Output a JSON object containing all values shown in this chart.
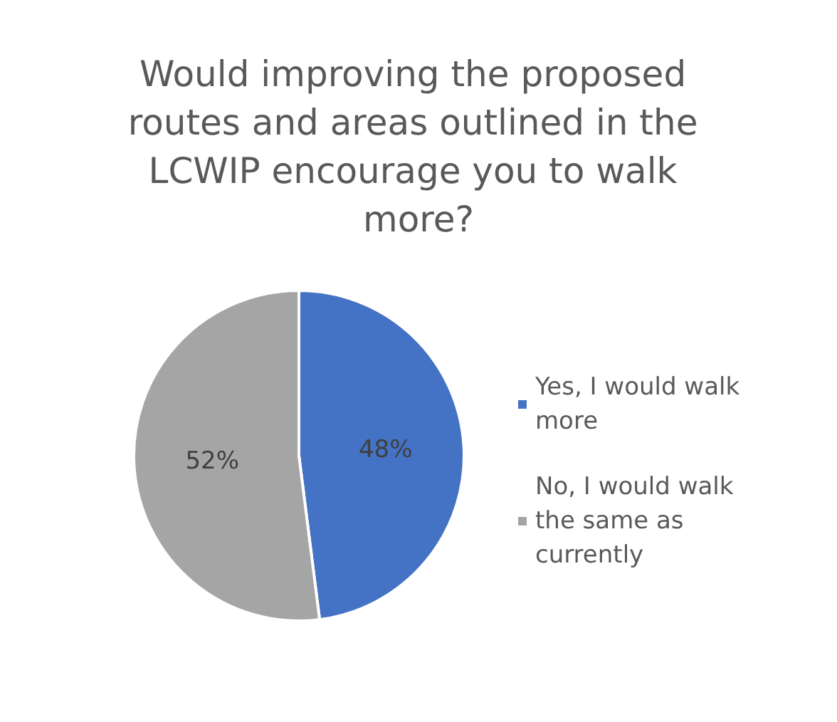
{
  "chart_data": {
    "type": "pie",
    "title": "Would improving the proposed routes and areas outlined in the LCWIP encourage you to walk more?",
    "categories": [
      "Yes, I would walk more",
      "No, I would walk the same as currently"
    ],
    "values": [
      48,
      52
    ],
    "colors": [
      "#4472c4",
      "#a5a5a5"
    ],
    "value_labels": [
      "48%",
      "52%"
    ],
    "legend": "right"
  }
}
